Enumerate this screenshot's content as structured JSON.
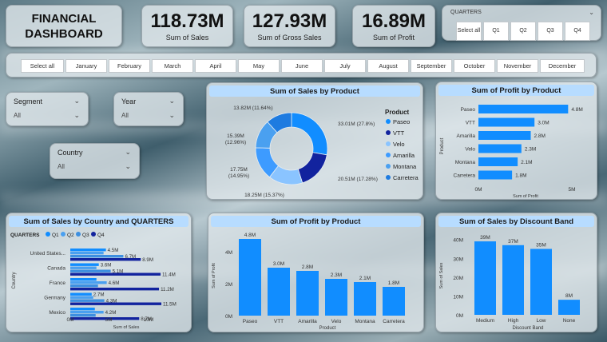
{
  "header": {
    "title_line1": "FINANCIAL",
    "title_line2": "DASHBOARD"
  },
  "kpis": [
    {
      "value": "118.73M",
      "label": "Sum of  Sales"
    },
    {
      "value": "127.93M",
      "label": "Sum of Gross Sales"
    },
    {
      "value": "16.89M",
      "label": "Sum of Profit"
    }
  ],
  "quarters_slicer": {
    "label": "QUARTERS",
    "options": [
      "Select all",
      "Q1",
      "Q2",
      "Q3",
      "Q4"
    ]
  },
  "months": [
    "Select all",
    "January",
    "February",
    "March",
    "April",
    "May",
    "June",
    "July",
    "August",
    "September",
    "October",
    "November",
    "December"
  ],
  "slicers": {
    "segment": {
      "label": "Segment",
      "value": "All"
    },
    "year": {
      "label": "Year",
      "value": "All"
    },
    "country": {
      "label": "Country",
      "value": "All"
    }
  },
  "colors": {
    "primary": "#118DFF",
    "dark_blue": "#12239E",
    "light_blue": "#8AC4FF",
    "header": "#B7DCFF"
  },
  "icons": {
    "dropdown": "chevron-down-icon"
  },
  "charts": {
    "donut": {
      "title": "Sum of Sales by Product",
      "legend_title": "Product",
      "chart_data": {
        "type": "pie",
        "categories": [
          "Paseo",
          "VTT",
          "Velo",
          "Amarilla",
          "Montana",
          "Carretera"
        ],
        "values": [
          33.01,
          20.51,
          18.25,
          17.75,
          15.39,
          13.82
        ],
        "labels": [
          "33.01M (27.8%)",
          "20.51M (17.28%)",
          "18.25M (15.37%)",
          "17.75M\n(14.95%)",
          "15.39M\n(12.96%)",
          "13.82M (11.64%)"
        ],
        "colors": [
          "#118DFF",
          "#12239E",
          "#8AC4FF",
          "#3D9BFF",
          "#4AA0F0",
          "#1E7BE0"
        ]
      }
    },
    "profit_hbar": {
      "title": "Sum of Profit by Product",
      "chart_data": {
        "type": "bar",
        "orientation": "horizontal",
        "categories": [
          "Paseo",
          "VTT",
          "Amarilla",
          "Velo",
          "Montana",
          "Carretera"
        ],
        "values": [
          4.8,
          3.0,
          2.8,
          2.3,
          2.1,
          1.8
        ],
        "data_labels": [
          "4.8M",
          "3.0M",
          "2.8M",
          "2.3M",
          "2.1M",
          "1.8M"
        ],
        "xlabel": "Sum of Profit",
        "ylabel": "Product",
        "xlim": [
          0,
          5
        ],
        "x_ticks": [
          "0M",
          "5M"
        ]
      }
    },
    "country_bar": {
      "title": "Sum of Sales by Country and QUARTERS",
      "legend_title": "QUARTERS",
      "chart_data": {
        "type": "bar",
        "orientation": "horizontal",
        "categories": [
          "United States...",
          "Canada",
          "France",
          "Germany",
          "Mexico"
        ],
        "series": [
          {
            "name": "Q1",
            "values": [
              4.5,
              3.6,
              3.3,
              2.7,
              3.1
            ],
            "labels": [
              "4.5M",
              "3.6M",
              "",
              "2.7M",
              ""
            ]
          },
          {
            "name": "Q2",
            "values": [
              4.2,
              3.3,
              4.6,
              2.9,
              4.2
            ],
            "labels": [
              "",
              "",
              "4.6M",
              "",
              "4.2M"
            ]
          },
          {
            "name": "Q3",
            "values": [
              6.7,
              5.1,
              3.5,
              4.3,
              3.2
            ],
            "labels": [
              "6.7M",
              "5.1M",
              "",
              "4.3M",
              ""
            ]
          },
          {
            "name": "Q4",
            "values": [
              8.9,
              11.4,
              11.2,
              11.5,
              8.7
            ],
            "labels": [
              "8.9M",
              "11.4M",
              "11.2M",
              "11.5M",
              "8.7M"
            ]
          }
        ],
        "colors": [
          "#118DFF",
          "#4AA0F0",
          "#3D8FE0",
          "#12239E"
        ],
        "xlabel": "Sum of Sales",
        "ylabel": "Country",
        "xlim": [
          0,
          12
        ],
        "x_ticks": [
          "0M",
          "5M",
          "10M"
        ]
      }
    },
    "profit_vbar": {
      "title": "Sum of Profit by Product",
      "chart_data": {
        "type": "bar",
        "categories": [
          "Paseo",
          "VTT",
          "Amarilla",
          "Velo",
          "Montana",
          "Carretera"
        ],
        "values": [
          4.8,
          3.0,
          2.8,
          2.3,
          2.1,
          1.8
        ],
        "data_labels": [
          "4.8M",
          "3.0M",
          "2.8M",
          "2.3M",
          "2.1M",
          "1.8M"
        ],
        "xlabel": "Product",
        "ylabel": "Sum of Profit",
        "ylim": [
          0,
          5
        ],
        "y_ticks": [
          "0M",
          "2M",
          "4M"
        ]
      }
    },
    "discount_bar": {
      "title": "Sum of Sales by Discount Band",
      "chart_data": {
        "type": "bar",
        "categories": [
          "Medium",
          "High",
          "Low",
          "None"
        ],
        "values": [
          39,
          37,
          35,
          8
        ],
        "data_labels": [
          "39M",
          "37M",
          "35M",
          "8M"
        ],
        "xlabel": "Discount Band",
        "ylabel": "Sum of Sales",
        "ylim": [
          0,
          42
        ],
        "y_ticks": [
          "0M",
          "10M",
          "20M",
          "30M",
          "40M"
        ]
      }
    }
  }
}
